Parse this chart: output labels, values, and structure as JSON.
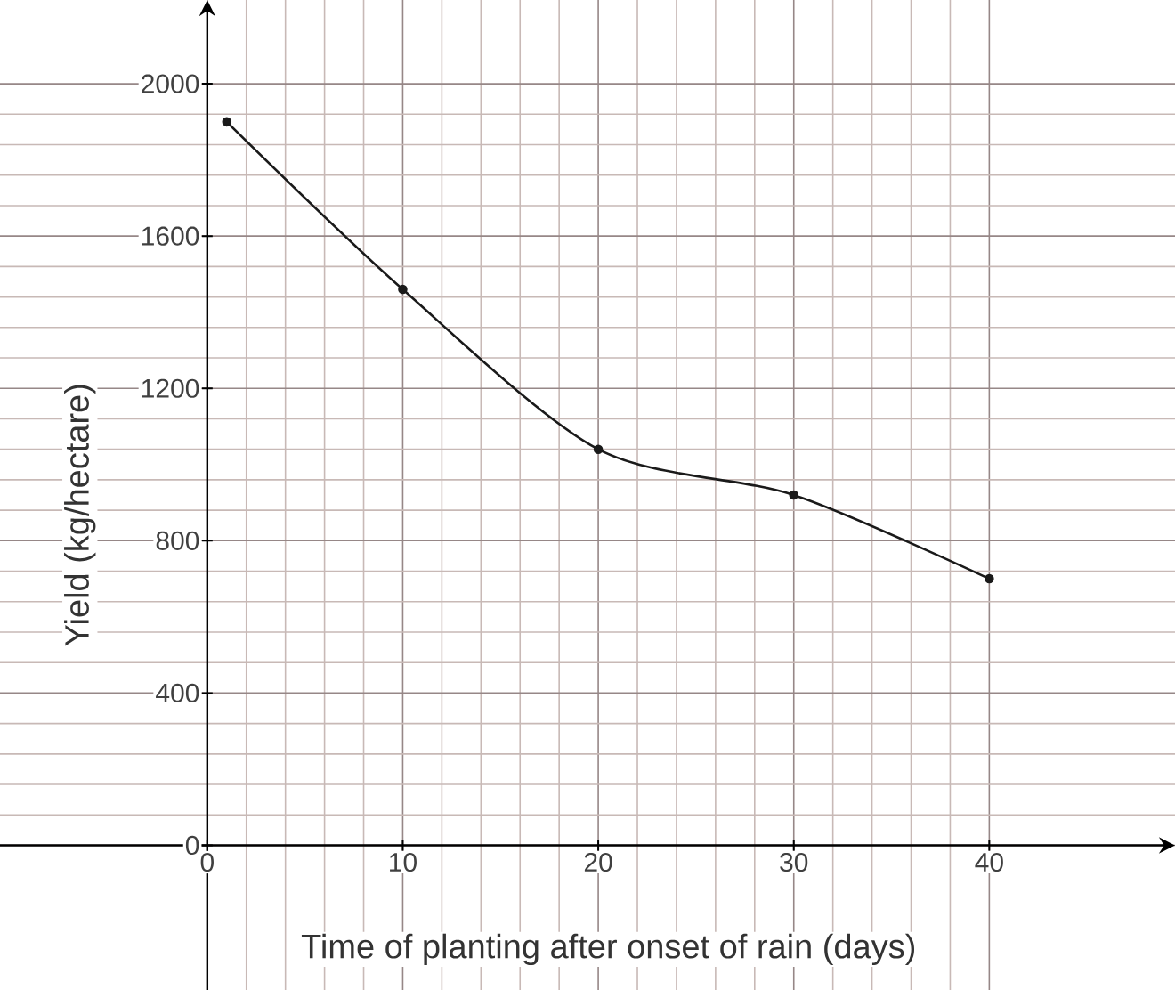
{
  "chart_data": {
    "type": "line",
    "xlabel": "Time of planting after onset of rain (days)",
    "ylabel": "Yield (kg/hectare)",
    "x": [
      1,
      10,
      20,
      30,
      40
    ],
    "series": [
      {
        "color": "#1a1a1a",
        "values": [
          1900,
          1460,
          1040,
          920,
          700
        ]
      }
    ],
    "xlim": [
      -10.6,
      49.5
    ],
    "ylim": [
      -380,
      2220
    ],
    "xticks": [
      0,
      10,
      20,
      30,
      40
    ],
    "yticks": [
      0,
      400,
      800,
      1200,
      1600,
      2000
    ],
    "grid": true,
    "marker": "circle",
    "line_style": "solid"
  }
}
